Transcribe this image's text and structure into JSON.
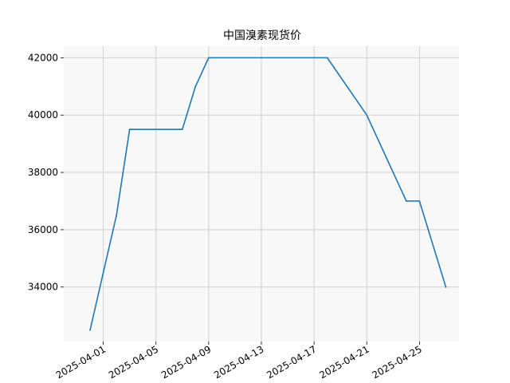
{
  "chart_data": {
    "type": "line",
    "title": "中国溴素现货价",
    "xlabel": "",
    "ylabel": "",
    "grid": true,
    "line_color": "#1f77b4",
    "plot_background": "#f8f8f8",
    "grid_color": "#d0d0d0",
    "x_ticks": [
      "2025-04-01",
      "2025-04-05",
      "2025-04-09",
      "2025-04-13",
      "2025-04-17",
      "2025-04-21",
      "2025-04-25"
    ],
    "y_ticks": [
      34000,
      36000,
      38000,
      40000,
      42000
    ],
    "xlim": [
      "2025-03-29",
      "2025-04-28"
    ],
    "ylim": [
      32100,
      42400
    ],
    "series": [
      {
        "x": [
          "2025-03-31",
          "2025-04-02",
          "2025-04-03",
          "2025-04-07",
          "2025-04-08",
          "2025-04-09",
          "2025-04-18",
          "2025-04-21",
          "2025-04-24",
          "2025-04-25",
          "2025-04-27"
        ],
        "y": [
          32500,
          36500,
          39500,
          39500,
          41000,
          42000,
          42000,
          40000,
          37000,
          37000,
          34000
        ]
      }
    ]
  }
}
